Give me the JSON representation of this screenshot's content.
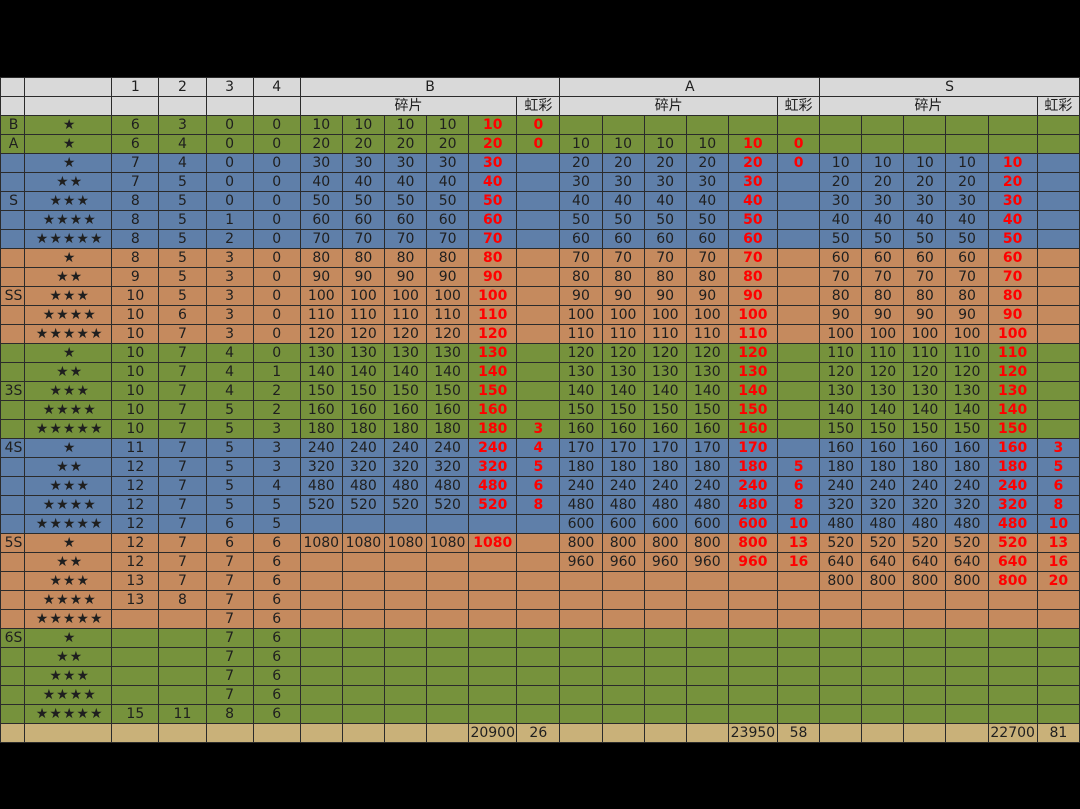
{
  "header": {
    "row1": [
      "",
      "",
      "1",
      "2",
      "3",
      "4",
      "B",
      "A",
      "S"
    ],
    "row2": [
      "碎片",
      "虹彩",
      "碎片",
      "虹彩",
      "碎片",
      "虹彩"
    ]
  },
  "rows": [
    {
      "tier": "B",
      "stars": "★",
      "c": [
        "6",
        "3",
        "0",
        "0"
      ],
      "b": [
        "10",
        "10",
        "10",
        "10",
        "10",
        "0"
      ],
      "a": [
        "",
        "",
        "",
        "",
        "",
        ""
      ],
      "s": [
        "",
        "",
        "",
        "",
        "",
        ""
      ],
      "color": "g"
    },
    {
      "tier": "A",
      "stars": "★",
      "c": [
        "6",
        "4",
        "0",
        "0"
      ],
      "b": [
        "20",
        "20",
        "20",
        "20",
        "20",
        "0"
      ],
      "a": [
        "10",
        "10",
        "10",
        "10",
        "10",
        "0"
      ],
      "s": [
        "",
        "",
        "",
        "",
        "",
        ""
      ],
      "color": "g"
    },
    {
      "tier": "",
      "stars": "★",
      "c": [
        "7",
        "4",
        "0",
        "0"
      ],
      "b": [
        "30",
        "30",
        "30",
        "30",
        "30",
        ""
      ],
      "a": [
        "20",
        "20",
        "20",
        "20",
        "20",
        "0"
      ],
      "s": [
        "10",
        "10",
        "10",
        "10",
        "10",
        ""
      ],
      "color": "b"
    },
    {
      "tier": "",
      "stars": "★★",
      "c": [
        "7",
        "5",
        "0",
        "0"
      ],
      "b": [
        "40",
        "40",
        "40",
        "40",
        "40",
        ""
      ],
      "a": [
        "30",
        "30",
        "30",
        "30",
        "30",
        ""
      ],
      "s": [
        "20",
        "20",
        "20",
        "20",
        "20",
        ""
      ],
      "color": "b"
    },
    {
      "tier": "S",
      "stars": "★★★",
      "c": [
        "8",
        "5",
        "0",
        "0"
      ],
      "b": [
        "50",
        "50",
        "50",
        "50",
        "50",
        ""
      ],
      "a": [
        "40",
        "40",
        "40",
        "40",
        "40",
        ""
      ],
      "s": [
        "30",
        "30",
        "30",
        "30",
        "30",
        ""
      ],
      "color": "b"
    },
    {
      "tier": "",
      "stars": "★★★★",
      "c": [
        "8",
        "5",
        "1",
        "0"
      ],
      "b": [
        "60",
        "60",
        "60",
        "60",
        "60",
        ""
      ],
      "a": [
        "50",
        "50",
        "50",
        "50",
        "50",
        ""
      ],
      "s": [
        "40",
        "40",
        "40",
        "40",
        "40",
        ""
      ],
      "color": "b"
    },
    {
      "tier": "",
      "stars": "★★★★★",
      "c": [
        "8",
        "5",
        "2",
        "0"
      ],
      "b": [
        "70",
        "70",
        "70",
        "70",
        "70",
        ""
      ],
      "a": [
        "60",
        "60",
        "60",
        "60",
        "60",
        ""
      ],
      "s": [
        "50",
        "50",
        "50",
        "50",
        "50",
        ""
      ],
      "color": "b"
    },
    {
      "tier": "",
      "stars": "★",
      "c": [
        "8",
        "5",
        "3",
        "0"
      ],
      "b": [
        "80",
        "80",
        "80",
        "80",
        "80",
        ""
      ],
      "a": [
        "70",
        "70",
        "70",
        "70",
        "70",
        ""
      ],
      "s": [
        "60",
        "60",
        "60",
        "60",
        "60",
        ""
      ],
      "color": "o"
    },
    {
      "tier": "",
      "stars": "★★",
      "c": [
        "9",
        "5",
        "3",
        "0"
      ],
      "b": [
        "90",
        "90",
        "90",
        "90",
        "90",
        ""
      ],
      "a": [
        "80",
        "80",
        "80",
        "80",
        "80",
        ""
      ],
      "s": [
        "70",
        "70",
        "70",
        "70",
        "70",
        ""
      ],
      "color": "o"
    },
    {
      "tier": "SS",
      "stars": "★★★",
      "c": [
        "10",
        "5",
        "3",
        "0"
      ],
      "b": [
        "100",
        "100",
        "100",
        "100",
        "100",
        ""
      ],
      "a": [
        "90",
        "90",
        "90",
        "90",
        "90",
        ""
      ],
      "s": [
        "80",
        "80",
        "80",
        "80",
        "80",
        ""
      ],
      "color": "o"
    },
    {
      "tier": "",
      "stars": "★★★★",
      "c": [
        "10",
        "6",
        "3",
        "0"
      ],
      "b": [
        "110",
        "110",
        "110",
        "110",
        "110",
        ""
      ],
      "a": [
        "100",
        "100",
        "100",
        "100",
        "100",
        ""
      ],
      "s": [
        "90",
        "90",
        "90",
        "90",
        "90",
        ""
      ],
      "color": "o"
    },
    {
      "tier": "",
      "stars": "★★★★★",
      "c": [
        "10",
        "7",
        "3",
        "0"
      ],
      "b": [
        "120",
        "120",
        "120",
        "120",
        "120",
        ""
      ],
      "a": [
        "110",
        "110",
        "110",
        "110",
        "110",
        ""
      ],
      "s": [
        "100",
        "100",
        "100",
        "100",
        "100",
        ""
      ],
      "color": "o"
    },
    {
      "tier": "",
      "stars": "★",
      "c": [
        "10",
        "7",
        "4",
        "0"
      ],
      "b": [
        "130",
        "130",
        "130",
        "130",
        "130",
        ""
      ],
      "a": [
        "120",
        "120",
        "120",
        "120",
        "120",
        ""
      ],
      "s": [
        "110",
        "110",
        "110",
        "110",
        "110",
        ""
      ],
      "color": "g"
    },
    {
      "tier": "",
      "stars": "★★",
      "c": [
        "10",
        "7",
        "4",
        "1"
      ],
      "b": [
        "140",
        "140",
        "140",
        "140",
        "140",
        ""
      ],
      "a": [
        "130",
        "130",
        "130",
        "130",
        "130",
        ""
      ],
      "s": [
        "120",
        "120",
        "120",
        "120",
        "120",
        ""
      ],
      "color": "g"
    },
    {
      "tier": "3S",
      "stars": "★★★",
      "c": [
        "10",
        "7",
        "4",
        "2"
      ],
      "b": [
        "150",
        "150",
        "150",
        "150",
        "150",
        ""
      ],
      "a": [
        "140",
        "140",
        "140",
        "140",
        "140",
        ""
      ],
      "s": [
        "130",
        "130",
        "130",
        "130",
        "130",
        ""
      ],
      "color": "g"
    },
    {
      "tier": "",
      "stars": "★★★★",
      "c": [
        "10",
        "7",
        "5",
        "2"
      ],
      "b": [
        "160",
        "160",
        "160",
        "160",
        "160",
        ""
      ],
      "a": [
        "150",
        "150",
        "150",
        "150",
        "150",
        ""
      ],
      "s": [
        "140",
        "140",
        "140",
        "140",
        "140",
        ""
      ],
      "color": "g"
    },
    {
      "tier": "",
      "stars": "★★★★★",
      "c": [
        "10",
        "7",
        "5",
        "3"
      ],
      "b": [
        "180",
        "180",
        "180",
        "180",
        "180",
        "3"
      ],
      "a": [
        "160",
        "160",
        "160",
        "160",
        "160",
        ""
      ],
      "s": [
        "150",
        "150",
        "150",
        "150",
        "150",
        ""
      ],
      "color": "g"
    },
    {
      "tier": "4S",
      "stars": "★",
      "c": [
        "11",
        "7",
        "5",
        "3"
      ],
      "b": [
        "240",
        "240",
        "240",
        "240",
        "240",
        "4"
      ],
      "a": [
        "170",
        "170",
        "170",
        "170",
        "170",
        ""
      ],
      "s": [
        "160",
        "160",
        "160",
        "160",
        "160",
        "3"
      ],
      "color": "b"
    },
    {
      "tier": "",
      "stars": "★★",
      "c": [
        "12",
        "7",
        "5",
        "3"
      ],
      "b": [
        "320",
        "320",
        "320",
        "320",
        "320",
        "5"
      ],
      "a": [
        "180",
        "180",
        "180",
        "180",
        "180",
        "5"
      ],
      "s": [
        "180",
        "180",
        "180",
        "180",
        "180",
        "5"
      ],
      "color": "b"
    },
    {
      "tier": "",
      "stars": "★★★",
      "c": [
        "12",
        "7",
        "5",
        "4"
      ],
      "b": [
        "480",
        "480",
        "480",
        "480",
        "480",
        "6"
      ],
      "a": [
        "240",
        "240",
        "240",
        "240",
        "240",
        "6"
      ],
      "s": [
        "240",
        "240",
        "240",
        "240",
        "240",
        "6"
      ],
      "color": "b"
    },
    {
      "tier": "",
      "stars": "★★★★",
      "c": [
        "12",
        "7",
        "5",
        "5"
      ],
      "b": [
        "520",
        "520",
        "520",
        "520",
        "520",
        "8"
      ],
      "a": [
        "480",
        "480",
        "480",
        "480",
        "480",
        "8"
      ],
      "s": [
        "320",
        "320",
        "320",
        "320",
        "320",
        "8"
      ],
      "color": "b"
    },
    {
      "tier": "",
      "stars": "★★★★★",
      "c": [
        "12",
        "7",
        "6",
        "5"
      ],
      "b": [
        "",
        "",
        "",
        "",
        "",
        ""
      ],
      "a": [
        "600",
        "600",
        "600",
        "600",
        "600",
        "10"
      ],
      "s": [
        "480",
        "480",
        "480",
        "480",
        "480",
        "10"
      ],
      "color": "b"
    },
    {
      "tier": "5S",
      "stars": "★",
      "c": [
        "12",
        "7",
        "6",
        "6"
      ],
      "b": [
        "1080",
        "1080",
        "1080",
        "1080",
        "1080",
        ""
      ],
      "a": [
        "800",
        "800",
        "800",
        "800",
        "800",
        "13"
      ],
      "s": [
        "520",
        "520",
        "520",
        "520",
        "520",
        "13"
      ],
      "color": "o"
    },
    {
      "tier": "",
      "stars": "★★",
      "c": [
        "12",
        "7",
        "7",
        "6"
      ],
      "b": [
        "",
        "",
        "",
        "",
        "",
        ""
      ],
      "a": [
        "960",
        "960",
        "960",
        "960",
        "960",
        "16"
      ],
      "s": [
        "640",
        "640",
        "640",
        "640",
        "640",
        "16"
      ],
      "color": "o"
    },
    {
      "tier": "",
      "stars": "★★★",
      "c": [
        "13",
        "7",
        "7",
        "6"
      ],
      "b": [
        "",
        "",
        "",
        "",
        "",
        ""
      ],
      "a": [
        "",
        "",
        "",
        "",
        "",
        ""
      ],
      "s": [
        "800",
        "800",
        "800",
        "800",
        "800",
        "20"
      ],
      "color": "o"
    },
    {
      "tier": "",
      "stars": "★★★★",
      "c": [
        "13",
        "8",
        "7",
        "6"
      ],
      "b": [
        "",
        "",
        "",
        "",
        "",
        ""
      ],
      "a": [
        "",
        "",
        "",
        "",
        "",
        ""
      ],
      "s": [
        "",
        "",
        "",
        "",
        "",
        ""
      ],
      "color": "o"
    },
    {
      "tier": "",
      "stars": "★★★★★",
      "c": [
        "",
        "",
        "7",
        "6"
      ],
      "b": [
        "",
        "",
        "",
        "",
        "",
        ""
      ],
      "a": [
        "",
        "",
        "",
        "",
        "",
        ""
      ],
      "s": [
        "",
        "",
        "",
        "",
        "",
        ""
      ],
      "color": "o"
    },
    {
      "tier": "6S",
      "stars": "★",
      "c": [
        "",
        "",
        "7",
        "6"
      ],
      "b": [
        "",
        "",
        "",
        "",
        "",
        ""
      ],
      "a": [
        "",
        "",
        "",
        "",
        "",
        ""
      ],
      "s": [
        "",
        "",
        "",
        "",
        "",
        ""
      ],
      "color": "g"
    },
    {
      "tier": "",
      "stars": "★★",
      "c": [
        "",
        "",
        "7",
        "6"
      ],
      "b": [
        "",
        "",
        "",
        "",
        "",
        ""
      ],
      "a": [
        "",
        "",
        "",
        "",
        "",
        ""
      ],
      "s": [
        "",
        "",
        "",
        "",
        "",
        ""
      ],
      "color": "g"
    },
    {
      "tier": "",
      "stars": "★★★",
      "c": [
        "",
        "",
        "7",
        "6"
      ],
      "b": [
        "",
        "",
        "",
        "",
        "",
        ""
      ],
      "a": [
        "",
        "",
        "",
        "",
        "",
        ""
      ],
      "s": [
        "",
        "",
        "",
        "",
        "",
        ""
      ],
      "color": "g"
    },
    {
      "tier": "",
      "stars": "★★★★",
      "c": [
        "",
        "",
        "7",
        "6"
      ],
      "b": [
        "",
        "",
        "",
        "",
        "",
        ""
      ],
      "a": [
        "",
        "",
        "",
        "",
        "",
        ""
      ],
      "s": [
        "",
        "",
        "",
        "",
        "",
        ""
      ],
      "color": "g"
    },
    {
      "tier": "",
      "stars": "★★★★★",
      "c": [
        "15",
        "11",
        "8",
        "6"
      ],
      "b": [
        "",
        "",
        "",
        "",
        "",
        ""
      ],
      "a": [
        "",
        "",
        "",
        "",
        "",
        ""
      ],
      "s": [
        "",
        "",
        "",
        "",
        "",
        ""
      ],
      "color": "g"
    }
  ],
  "totals": {
    "b_shards": "20900",
    "b_rainbow": "26",
    "a_shards": "23950",
    "a_rainbow": "58",
    "s_shards": "22700",
    "s_rainbow": "81"
  },
  "colors": {
    "green": "#76923c",
    "blue": "#5f7fa9",
    "orange": "#c58a5e",
    "header": "#d9d9d9",
    "total": "#c9b179",
    "highlight": "#ff0000"
  }
}
